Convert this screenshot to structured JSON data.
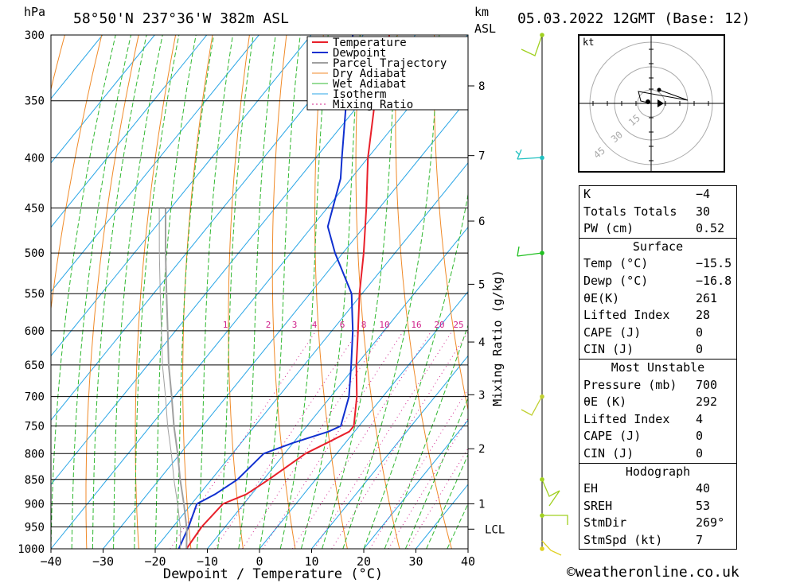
{
  "header": {
    "unit_hpa": "hPa",
    "location": "58°50'N  237°36'W  382m  ASL",
    "unit_km": "km",
    "unit_asl": "ASL",
    "date": "05.03.2022  12GMT  (Base: 12)"
  },
  "chart_data": {
    "type": "line",
    "title": "58°50'N 237°36'W 382m ASL",
    "xlabel": "Dewpoint / Temperature (°C)",
    "ylabel": "hPa",
    "y2label": "Mixing Ratio (g/kg)",
    "xlim": [
      -40,
      40
    ],
    "ylim": [
      1000,
      300
    ],
    "x_ticks": [
      -40,
      -30,
      -20,
      -10,
      0,
      10,
      20,
      30,
      40
    ],
    "x_tick_labels": [
      "−40",
      "−30",
      "−20",
      "−10",
      "0",
      "10",
      "20",
      "30",
      "40"
    ],
    "pressure_levels": [
      300,
      350,
      400,
      450,
      500,
      550,
      600,
      650,
      700,
      750,
      800,
      850,
      900,
      950,
      1000
    ],
    "km_ticks": [
      {
        "label": "8",
        "p": 338
      },
      {
        "label": "7",
        "p": 398
      },
      {
        "label": "6",
        "p": 464
      },
      {
        "label": "5",
        "p": 538
      },
      {
        "label": "4",
        "p": 616
      },
      {
        "label": "3",
        "p": 697
      },
      {
        "label": "2",
        "p": 791
      },
      {
        "label": "1",
        "p": 900
      },
      {
        "label": "LCL",
        "p": 955
      }
    ],
    "mixing_ratio_labels": [
      "1",
      "2",
      "3",
      "4",
      "6",
      "8",
      "10",
      "16",
      "20",
      "25"
    ],
    "mixing_ratio_values": [
      1,
      2,
      3,
      4,
      6,
      8,
      10,
      16,
      20,
      25
    ],
    "legend": [
      "Temperature",
      "Dewpoint",
      "Parcel Trajectory",
      "Dry Adiabat",
      "Wet Adiabat",
      "Isotherm",
      "Mixing Ratio"
    ],
    "series": [
      {
        "name": "Temperature",
        "color": "#e8202a",
        "points": [
          {
            "p": 1000,
            "t": -14.0
          },
          {
            "p": 950,
            "t": -14.5
          },
          {
            "p": 900,
            "t": -14.0
          },
          {
            "p": 880,
            "t": -11.0
          },
          {
            "p": 850,
            "t": -9.0
          },
          {
            "p": 800,
            "t": -6.0
          },
          {
            "p": 780,
            "t": -3.5
          },
          {
            "p": 760,
            "t": -1.0
          },
          {
            "p": 750,
            "t": -1.0
          },
          {
            "p": 700,
            "t": -5.0
          },
          {
            "p": 650,
            "t": -10.0
          },
          {
            "p": 600,
            "t": -15.0
          },
          {
            "p": 550,
            "t": -20.5
          },
          {
            "p": 500,
            "t": -26.0
          },
          {
            "p": 450,
            "t": -32.5
          },
          {
            "p": 400,
            "t": -40.0
          },
          {
            "p": 350,
            "t": -47.5
          },
          {
            "p": 330,
            "t": -49.5
          },
          {
            "p": 300,
            "t": -55.0
          }
        ]
      },
      {
        "name": "Dewpoint",
        "color": "#1030d0",
        "points": [
          {
            "p": 1000,
            "t": -15.5
          },
          {
            "p": 950,
            "t": -17.0
          },
          {
            "p": 900,
            "t": -19.0
          },
          {
            "p": 880,
            "t": -17.0
          },
          {
            "p": 850,
            "t": -15.0
          },
          {
            "p": 800,
            "t": -14.0
          },
          {
            "p": 780,
            "t": -10.0
          },
          {
            "p": 760,
            "t": -5.0
          },
          {
            "p": 750,
            "t": -3.5
          },
          {
            "p": 700,
            "t": -6.5
          },
          {
            "p": 650,
            "t": -11.0
          },
          {
            "p": 600,
            "t": -16.0
          },
          {
            "p": 550,
            "t": -22.0
          },
          {
            "p": 500,
            "t": -31.5
          },
          {
            "p": 470,
            "t": -37.0
          },
          {
            "p": 420,
            "t": -42.0
          },
          {
            "p": 400,
            "t": -45.0
          },
          {
            "p": 350,
            "t": -53.0
          },
          {
            "p": 300,
            "t": -62.0
          }
        ]
      },
      {
        "name": "Parcel Trajectory",
        "color": "#a0a0a0",
        "points": [
          {
            "p": 1000,
            "t": -14.0
          },
          {
            "p": 955,
            "t": -17.0
          },
          {
            "p": 900,
            "t": -21.5
          },
          {
            "p": 850,
            "t": -26.0
          },
          {
            "p": 800,
            "t": -30.5
          },
          {
            "p": 750,
            "t": -35.5
          },
          {
            "p": 700,
            "t": -40.5
          },
          {
            "p": 650,
            "t": -46.0
          },
          {
            "p": 600,
            "t": -51.5
          },
          {
            "p": 550,
            "t": -57.5
          },
          {
            "p": 500,
            "t": -64.0
          },
          {
            "p": 450,
            "t": -71.0
          }
        ]
      }
    ],
    "wind_barbs": [
      {
        "p": 300,
        "color": "#a0d020"
      },
      {
        "p": 400,
        "color": "#20c0c0"
      },
      {
        "p": 500,
        "color": "#20c020"
      },
      {
        "p": 700,
        "color": "#c0d030"
      },
      {
        "p": 850,
        "color": "#a0d020"
      },
      {
        "p": 925,
        "color": "#a0d020"
      },
      {
        "p": 1000,
        "color": "#e0d020"
      }
    ]
  },
  "hodograph": {
    "unit": "kt",
    "ring_labels": [
      "15",
      "30",
      "45"
    ]
  },
  "indices": {
    "k_label": "K",
    "k_value": "−4",
    "tt_label": "Totals Totals",
    "tt_value": "30",
    "pw_label": "PW (cm)",
    "pw_value": "0.52"
  },
  "surface": {
    "title": "Surface",
    "temp_label": "Temp (°C)",
    "temp_value": "−15.5",
    "dewp_label": "Dewp (°C)",
    "dewp_value": "−16.8",
    "theta_label": "θE(K)",
    "theta_value": "261",
    "li_label": "Lifted Index",
    "li_value": "28",
    "cape_label": "CAPE (J)",
    "cape_value": "0",
    "cin_label": "CIN (J)",
    "cin_value": "0"
  },
  "most_unstable": {
    "title": "Most Unstable",
    "pressure_label": "Pressure (mb)",
    "pressure_value": "700",
    "theta_label": "θE (K)",
    "theta_value": "292",
    "li_label": "Lifted Index",
    "li_value": "4",
    "cape_label": "CAPE (J)",
    "cape_value": "0",
    "cin_label": "CIN (J)",
    "cin_value": "0"
  },
  "hodograph_table": {
    "title": "Hodograph",
    "eh_label": "EH",
    "eh_value": "40",
    "sreh_label": "SREH",
    "sreh_value": "53",
    "stmdir_label": "StmDir",
    "stmdir_value": "269°",
    "stmspd_label": "StmSpd (kt)",
    "stmspd_value": "7"
  },
  "footer": {
    "credit": "©weatheronline.co.uk"
  },
  "colors": {
    "temperature": "#e8202a",
    "dewpoint": "#1030d0",
    "parcel": "#a0a0a0",
    "dry_adiabat": "#f08a28",
    "wet_adiabat": "#30b830",
    "isotherm": "#2aa6e6",
    "mixing_ratio": "#d0208a"
  }
}
